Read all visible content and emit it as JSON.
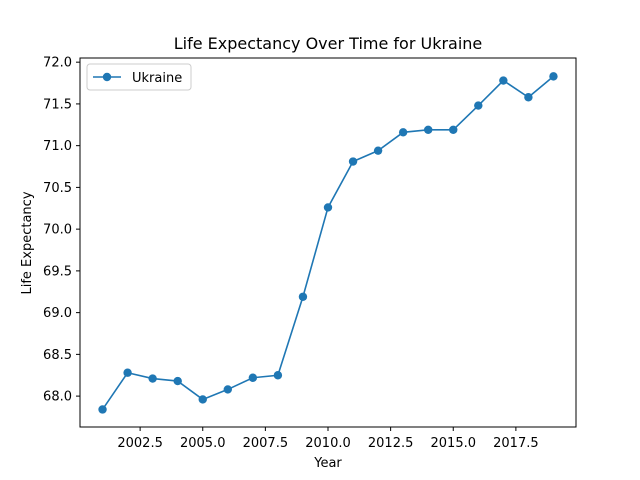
{
  "chart_data": {
    "type": "line",
    "title": "Life Expectancy Over Time for Ukraine",
    "xlabel": "Year",
    "ylabel": "Life Expectancy",
    "xlim": [
      2000.1,
      2019.9
    ],
    "ylim": [
      67.63,
      72.05
    ],
    "x_ticks": [
      2002.5,
      2005.0,
      2007.5,
      2010.0,
      2012.5,
      2015.0,
      2017.5
    ],
    "x_tick_labels": [
      "2002.5",
      "2005.0",
      "2007.5",
      "2010.0",
      "2012.5",
      "2015.0",
      "2017.5"
    ],
    "y_ticks": [
      68.0,
      68.5,
      69.0,
      69.5,
      70.0,
      70.5,
      71.0,
      71.5,
      72.0
    ],
    "y_tick_labels": [
      "68.0",
      "68.5",
      "69.0",
      "69.5",
      "70.0",
      "70.5",
      "71.0",
      "71.5",
      "72.0"
    ],
    "grid": false,
    "legend_position": "top-left",
    "series": [
      {
        "name": "Ukraine",
        "color": "#1f77b4",
        "x": [
          2001,
          2002,
          2003,
          2004,
          2005,
          2006,
          2007,
          2008,
          2009,
          2010,
          2011,
          2012,
          2013,
          2014,
          2015,
          2016,
          2017,
          2018,
          2019
        ],
        "y": [
          67.84,
          68.28,
          68.21,
          68.18,
          67.96,
          68.08,
          68.22,
          68.25,
          69.19,
          70.26,
          70.81,
          70.94,
          71.16,
          71.19,
          71.19,
          71.48,
          71.78,
          71.58,
          71.83
        ]
      }
    ]
  }
}
